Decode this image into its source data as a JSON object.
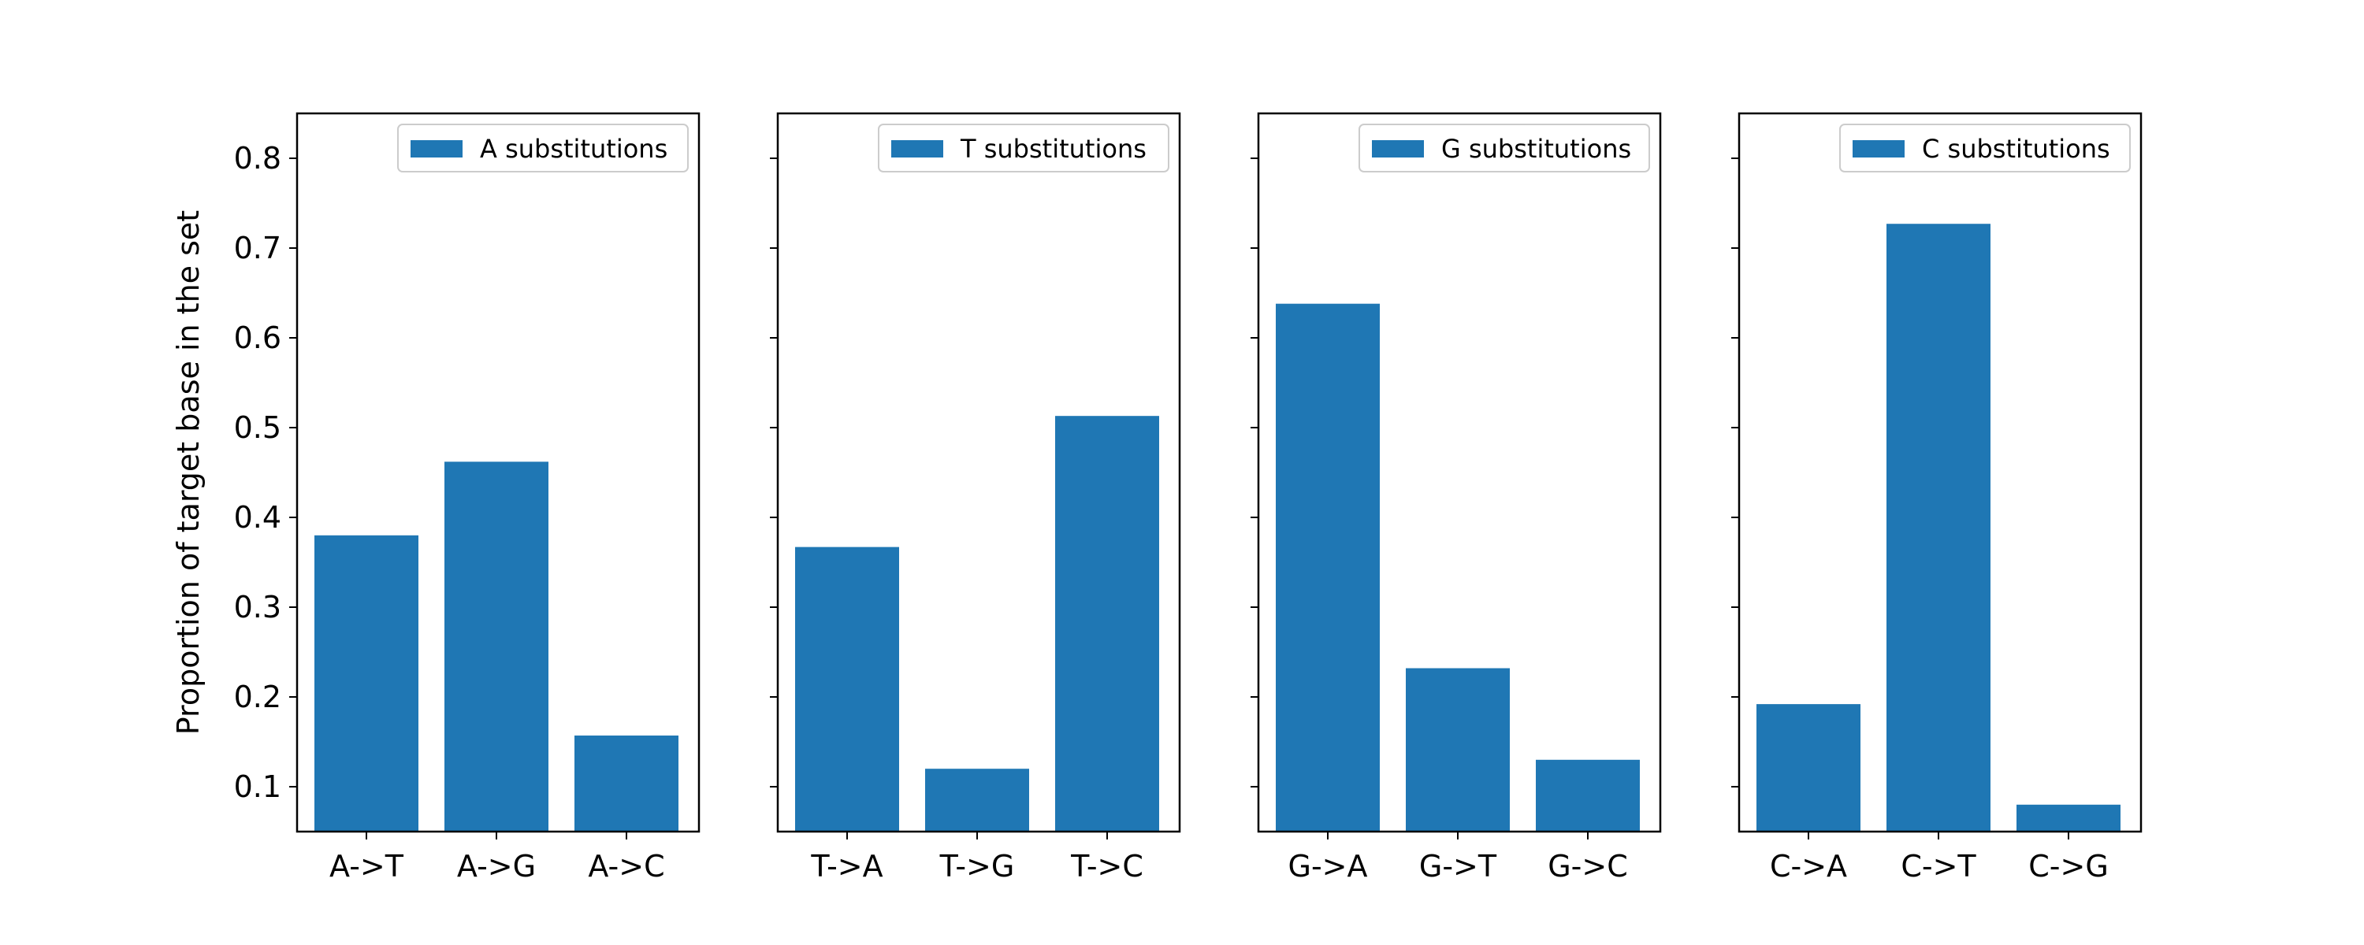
{
  "chart_data": {
    "type": "bar",
    "ylabel": "Proportion of target base in the set",
    "ylim": [
      0.05,
      0.85
    ],
    "yticks": [
      0.1,
      0.2,
      0.3,
      0.4,
      0.5,
      0.6,
      0.7,
      0.8
    ],
    "ytick_labels": [
      "0.1",
      "0.2",
      "0.3",
      "0.4",
      "0.5",
      "0.6",
      "0.7",
      "0.8"
    ],
    "shared_y": true,
    "grid": false,
    "bar_color": "#1f77b4",
    "legend_placement": "top-right",
    "panels": [
      {
        "legend": "A substitutions",
        "categories": [
          "A->T",
          "A->G",
          "A->C"
        ],
        "values": [
          0.38,
          0.462,
          0.157
        ]
      },
      {
        "legend": "T substitutions",
        "categories": [
          "T->A",
          "T->G",
          "T->C"
        ],
        "values": [
          0.367,
          0.12,
          0.513
        ]
      },
      {
        "legend": "G substitutions",
        "categories": [
          "G->A",
          "G->T",
          "G->C"
        ],
        "values": [
          0.638,
          0.232,
          0.13
        ]
      },
      {
        "legend": "C substitutions",
        "categories": [
          "C->A",
          "C->T",
          "C->G"
        ],
        "values": [
          0.192,
          0.727,
          0.08
        ]
      }
    ]
  }
}
